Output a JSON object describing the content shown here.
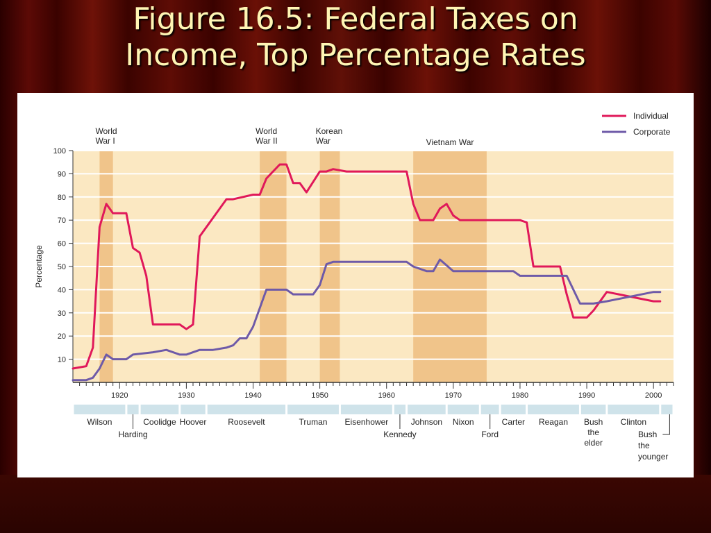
{
  "slide": {
    "title_line1": "Figure 16.5: Federal Taxes on",
    "title_line2": "Income, Top Percentage Rates"
  },
  "colors": {
    "individual": "#e0185a",
    "corporate": "#6e5aa8",
    "war_band": "#f0c48a",
    "plot_bg": "#fbe8c2",
    "president_band": "#cfe3ea"
  },
  "chart_data": {
    "type": "line",
    "ylabel": "Percentage",
    "ylim": [
      0,
      100
    ],
    "yticks": [
      10,
      20,
      30,
      40,
      50,
      60,
      70,
      80,
      90,
      100
    ],
    "xlim": [
      1913,
      2003
    ],
    "xticks": [
      1920,
      1930,
      1940,
      1950,
      1960,
      1970,
      1980,
      1990,
      2000
    ],
    "grid": true,
    "legend_position": "top-right",
    "legend": [
      "Individual",
      "Corporate"
    ],
    "series": [
      {
        "name": "Individual",
        "color_key": "individual",
        "x": [
          1913,
          1915,
          1916,
          1917,
          1918,
          1919,
          1921,
          1922,
          1923,
          1924,
          1925,
          1929,
          1930,
          1931,
          1932,
          1936,
          1937,
          1940,
          1941,
          1942,
          1944,
          1945,
          1946,
          1947,
          1948,
          1950,
          1951,
          1952,
          1954,
          1963,
          1964,
          1965,
          1967,
          1968,
          1969,
          1970,
          1971,
          1980,
          1981,
          1982,
          1986,
          1987,
          1988,
          1990,
          1991,
          1993,
          2000,
          2001
        ],
        "values": [
          6,
          7,
          15,
          67,
          77,
          73,
          73,
          58,
          56,
          46,
          25,
          25,
          23,
          25,
          63,
          79,
          79,
          81,
          81,
          88,
          94,
          94,
          86,
          86,
          82,
          91,
          91,
          92,
          91,
          91,
          77,
          70,
          70,
          75,
          77,
          72,
          70,
          70,
          69,
          50,
          50,
          38,
          28,
          28,
          31,
          39,
          35,
          35
        ]
      },
      {
        "name": "Corporate",
        "color_key": "corporate",
        "x": [
          1913,
          1915,
          1916,
          1917,
          1918,
          1919,
          1921,
          1922,
          1925,
          1927,
          1929,
          1930,
          1932,
          1934,
          1936,
          1937,
          1938,
          1939,
          1940,
          1942,
          1945,
          1946,
          1949,
          1950,
          1951,
          1952,
          1963,
          1964,
          1966,
          1967,
          1968,
          1970,
          1979,
          1980,
          1987,
          1989,
          1991,
          1993,
          2000,
          2001
        ],
        "values": [
          1,
          1,
          2,
          6,
          12,
          10,
          10,
          12,
          13,
          14,
          12,
          12,
          14,
          14,
          15,
          16,
          19,
          19,
          24,
          40,
          40,
          38,
          38,
          42,
          51,
          52,
          52,
          50,
          48,
          48,
          53,
          48,
          48,
          46,
          46,
          34,
          34,
          35,
          39,
          39
        ]
      }
    ],
    "wars": [
      {
        "label": "World\nWar I",
        "start": 1917,
        "end": 1919
      },
      {
        "label": "World\nWar II",
        "start": 1941,
        "end": 1945
      },
      {
        "label": "Korean\nWar",
        "start": 1950,
        "end": 1953
      },
      {
        "label": "Vietnam War",
        "start": 1964,
        "end": 1975
      }
    ],
    "presidents": [
      {
        "name": "Wilson",
        "start": 1913,
        "end": 1921,
        "row": "top"
      },
      {
        "name": "Harding",
        "start": 1921,
        "end": 1923,
        "row": "bottom"
      },
      {
        "name": "Coolidge",
        "start": 1923,
        "end": 1929,
        "row": "top"
      },
      {
        "name": "Hoover",
        "start": 1929,
        "end": 1933,
        "row": "top"
      },
      {
        "name": "Roosevelt",
        "start": 1933,
        "end": 1945,
        "row": "top"
      },
      {
        "name": "Truman",
        "start": 1945,
        "end": 1953,
        "row": "top"
      },
      {
        "name": "Eisenhower",
        "start": 1953,
        "end": 1961,
        "row": "top"
      },
      {
        "name": "Kennedy",
        "start": 1961,
        "end": 1963,
        "row": "bottom"
      },
      {
        "name": "Johnson",
        "start": 1963,
        "end": 1969,
        "row": "top"
      },
      {
        "name": "Nixon",
        "start": 1969,
        "end": 1974,
        "row": "top"
      },
      {
        "name": "Ford",
        "start": 1974,
        "end": 1977,
        "row": "bottom"
      },
      {
        "name": "Carter",
        "start": 1977,
        "end": 1981,
        "row": "top"
      },
      {
        "name": "Reagan",
        "start": 1981,
        "end": 1989,
        "row": "top"
      },
      {
        "name": "Bush\nthe\nelder",
        "start": 1989,
        "end": 1993,
        "row": "top"
      },
      {
        "name": "Clinton",
        "start": 1993,
        "end": 2001,
        "row": "top"
      },
      {
        "name": "Bush\nthe\nyounger",
        "start": 2001,
        "end": 2003,
        "row": "bottom-right"
      }
    ]
  }
}
